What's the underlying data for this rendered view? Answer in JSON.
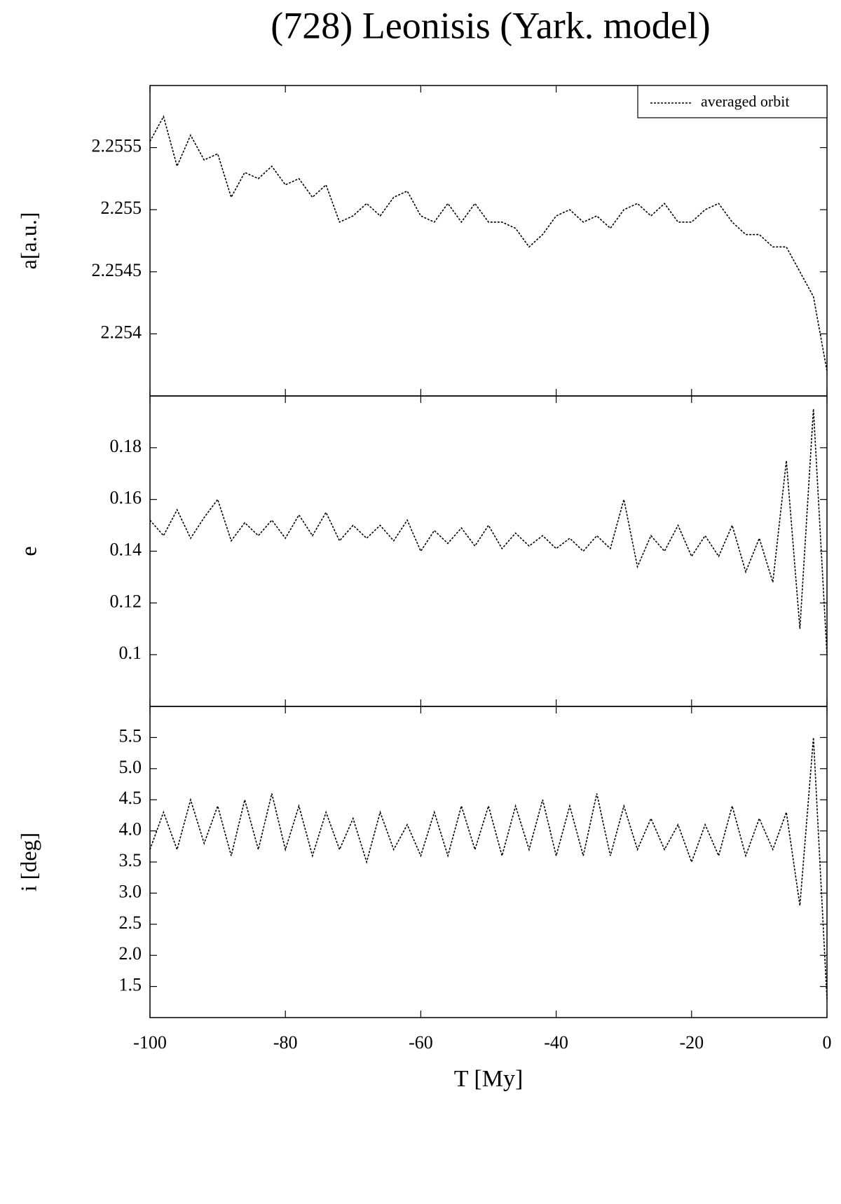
{
  "title": "(728) Leonisis (Yark. model)",
  "chart_data": [
    {
      "type": "line",
      "ylabel": "a[a.u.]",
      "legend": "upper right",
      "x": [
        -100,
        -98,
        -96,
        -94,
        -92,
        -90,
        -88,
        -86,
        -84,
        -82,
        -80,
        -78,
        -76,
        -74,
        -72,
        -70,
        -68,
        -66,
        -64,
        -62,
        -60,
        -58,
        -56,
        -54,
        -52,
        -50,
        -48,
        -46,
        -44,
        -42,
        -40,
        -38,
        -36,
        -34,
        -32,
        -30,
        -28,
        -26,
        -24,
        -22,
        -20,
        -18,
        -16,
        -14,
        -12,
        -10,
        -8,
        -6,
        -4,
        -2,
        0
      ],
      "series": [
        {
          "name": "averaged orbit",
          "color": "#000000",
          "values": [
            2.25555,
            2.25575,
            2.25535,
            2.2556,
            2.2554,
            2.25545,
            2.2551,
            2.2553,
            2.25525,
            2.25535,
            2.2552,
            2.25525,
            2.2551,
            2.2552,
            2.2549,
            2.25495,
            2.25505,
            2.25495,
            2.2551,
            2.25515,
            2.25495,
            2.2549,
            2.25505,
            2.2549,
            2.25505,
            2.2549,
            2.2549,
            2.25485,
            2.2547,
            2.2548,
            2.25495,
            2.255,
            2.2549,
            2.25495,
            2.25485,
            2.255,
            2.25505,
            2.25495,
            2.25505,
            2.2549,
            2.2549,
            2.255,
            2.25505,
            2.2549,
            2.2548,
            2.2548,
            2.2547,
            2.2547,
            2.2545,
            2.2543,
            2.2537
          ]
        }
      ],
      "xlim": [
        -100,
        0
      ],
      "xticks": [
        -100,
        -80,
        -60,
        -40,
        -20,
        0
      ],
      "ylim": [
        2.2535,
        2.256
      ],
      "yticks": [
        2.254,
        2.2545,
        2.255,
        2.2555
      ]
    },
    {
      "type": "line",
      "ylabel": "e",
      "x": [
        -100,
        -98,
        -96,
        -94,
        -92,
        -90,
        -88,
        -86,
        -84,
        -82,
        -80,
        -78,
        -76,
        -74,
        -72,
        -70,
        -68,
        -66,
        -64,
        -62,
        -60,
        -58,
        -56,
        -54,
        -52,
        -50,
        -48,
        -46,
        -44,
        -42,
        -40,
        -38,
        -36,
        -34,
        -32,
        -30,
        -28,
        -26,
        -24,
        -22,
        -20,
        -18,
        -16,
        -14,
        -12,
        -10,
        -8,
        -6,
        -4,
        -2,
        0
      ],
      "series": [
        {
          "name": null,
          "color": "#000000",
          "values": [
            0.152,
            0.146,
            0.156,
            0.145,
            0.153,
            0.16,
            0.144,
            0.151,
            0.146,
            0.152,
            0.145,
            0.154,
            0.146,
            0.155,
            0.144,
            0.15,
            0.145,
            0.15,
            0.144,
            0.152,
            0.14,
            0.148,
            0.143,
            0.149,
            0.142,
            0.15,
            0.141,
            0.147,
            0.142,
            0.146,
            0.141,
            0.145,
            0.14,
            0.146,
            0.141,
            0.16,
            0.134,
            0.146,
            0.14,
            0.15,
            0.138,
            0.146,
            0.138,
            0.15,
            0.132,
            0.145,
            0.128,
            0.175,
            0.11,
            0.195,
            0.1
          ]
        }
      ],
      "xlim": [
        -100,
        0
      ],
      "xticks": [
        -100,
        -80,
        -60,
        -40,
        -20,
        0
      ],
      "ylim": [
        0.08,
        0.2
      ],
      "yticks": [
        0.1,
        0.12,
        0.14,
        0.16,
        0.18
      ]
    },
    {
      "type": "line",
      "ylabel": "i [deg]",
      "xlabel": "T [My]",
      "x": [
        -100,
        -98,
        -96,
        -94,
        -92,
        -90,
        -88,
        -86,
        -84,
        -82,
        -80,
        -78,
        -76,
        -74,
        -72,
        -70,
        -68,
        -66,
        -64,
        -62,
        -60,
        -58,
        -56,
        -54,
        -52,
        -50,
        -48,
        -46,
        -44,
        -42,
        -40,
        -38,
        -36,
        -34,
        -32,
        -30,
        -28,
        -26,
        -24,
        -22,
        -20,
        -18,
        -16,
        -14,
        -12,
        -10,
        -8,
        -6,
        -4,
        -2,
        0
      ],
      "series": [
        {
          "name": null,
          "color": "#000000",
          "values": [
            3.7,
            4.3,
            3.7,
            4.5,
            3.8,
            4.4,
            3.6,
            4.5,
            3.7,
            4.6,
            3.7,
            4.4,
            3.6,
            4.3,
            3.7,
            4.2,
            3.5,
            4.3,
            3.7,
            4.1,
            3.6,
            4.3,
            3.6,
            4.4,
            3.7,
            4.4,
            3.6,
            4.4,
            3.7,
            4.5,
            3.6,
            4.4,
            3.6,
            4.6,
            3.6,
            4.4,
            3.7,
            4.2,
            3.7,
            4.1,
            3.5,
            4.1,
            3.6,
            4.4,
            3.6,
            4.2,
            3.7,
            4.3,
            2.8,
            5.5,
            1.3
          ]
        }
      ],
      "xlim": [
        -100,
        0
      ],
      "xticks": [
        -100,
        -80,
        -60,
        -40,
        -20,
        0
      ],
      "ylim": [
        1,
        6
      ],
      "yticks": [
        1.5,
        {
          "value": 2,
          "label": "2.0"
        },
        2.5,
        {
          "value": 3,
          "label": "3.0"
        },
        3.5,
        {
          "value": 4,
          "label": "4.0"
        },
        4.5,
        {
          "value": 5,
          "label": "5.0"
        },
        5.5
      ]
    }
  ]
}
